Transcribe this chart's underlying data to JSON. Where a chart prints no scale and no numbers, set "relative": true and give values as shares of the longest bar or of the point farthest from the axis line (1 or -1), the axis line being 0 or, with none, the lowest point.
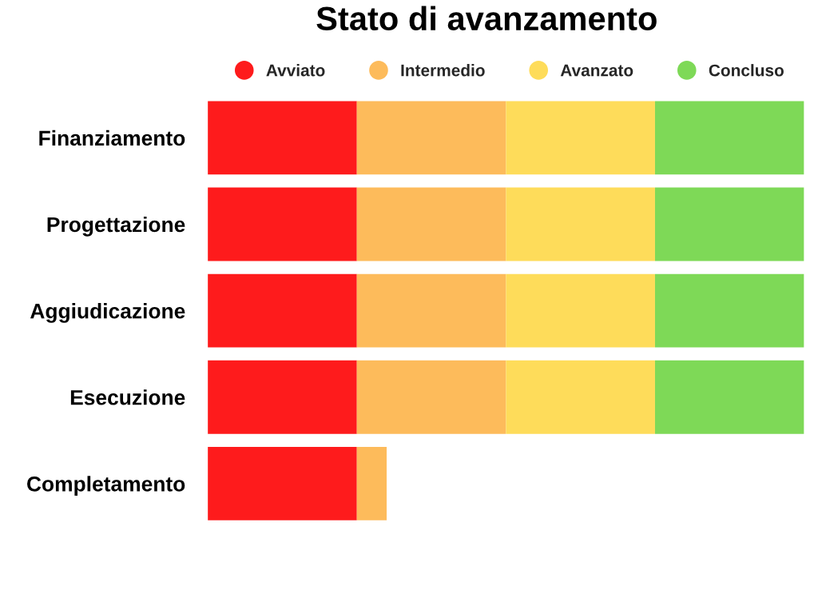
{
  "chart_data": {
    "type": "bar",
    "orientation": "horizontal",
    "stacked": true,
    "relative": true,
    "title": "Stato di avanzamento",
    "categories": [
      "Finanziamento",
      "Progettazione",
      "Aggiudicazione",
      "Esecuzione",
      "Completamento"
    ],
    "series": [
      {
        "name": "Avviato",
        "color": "#fe1b1c",
        "values": [
          0.25,
          0.25,
          0.25,
          0.25,
          0.25
        ]
      },
      {
        "name": "Intermedio",
        "color": "#fdbb5b",
        "values": [
          0.25,
          0.25,
          0.25,
          0.25,
          0.05
        ]
      },
      {
        "name": "Avanzato",
        "color": "#fedc5a",
        "values": [
          0.25,
          0.25,
          0.25,
          0.25,
          null
        ]
      },
      {
        "name": "Concluso",
        "color": "#7ed957",
        "values": [
          0.25,
          0.25,
          0.25,
          0.25,
          null
        ]
      }
    ],
    "legend": "top",
    "tick_labels": "y"
  }
}
